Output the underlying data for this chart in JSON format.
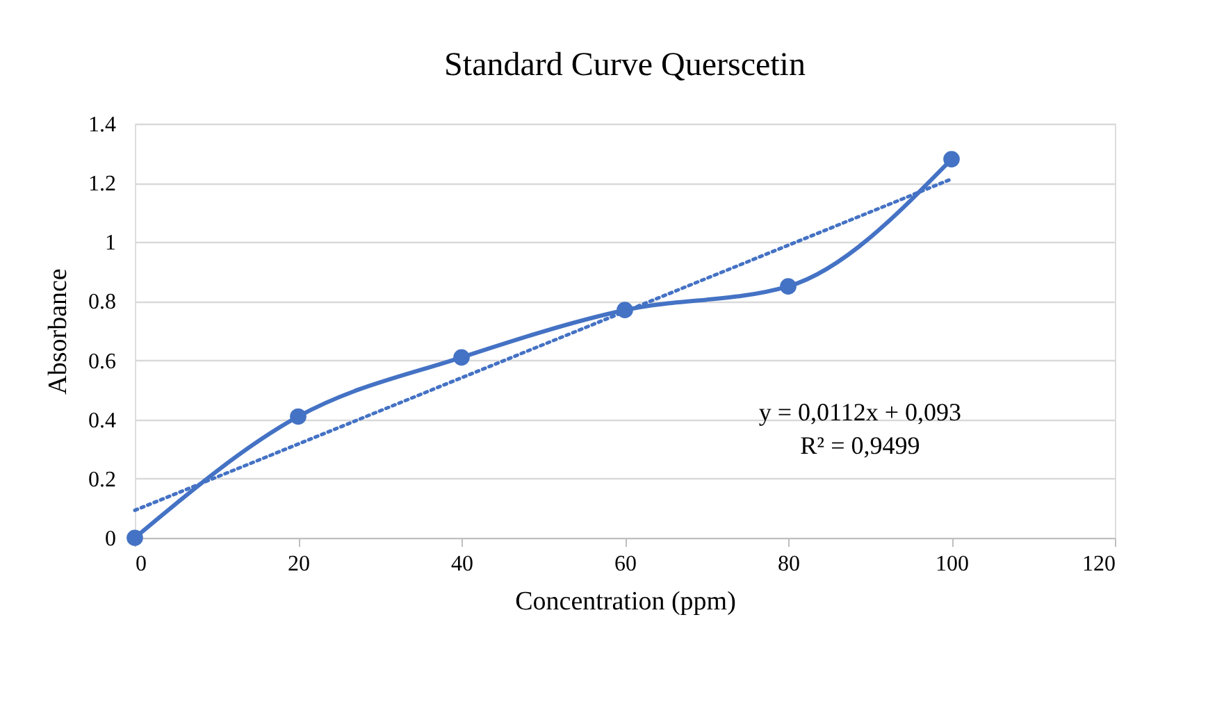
{
  "chart_data": {
    "type": "line",
    "title": "Standard Curve Querscetin",
    "xlabel": "Concentration (ppm)",
    "ylabel": "Absorbance",
    "x": [
      0,
      20,
      40,
      60,
      80,
      100
    ],
    "series": [
      {
        "color": "#4472c4",
        "values": [
          0,
          0.41,
          0.61,
          0.77,
          0.85,
          1.28
        ],
        "marker": "circle",
        "line_style": "solid"
      },
      {
        "type": "line",
        "color": "#4472c4",
        "x": [
          0,
          100
        ],
        "values": [
          0.093,
          1.213
        ],
        "marker": "none",
        "line_style": "dotted"
      }
    ],
    "xlim": [
      0,
      120
    ],
    "xticks": [
      0,
      20,
      40,
      60,
      80,
      100,
      120
    ],
    "ylim": [
      0,
      1.4
    ],
    "yticks": [
      0,
      0.2,
      0.4,
      0.6,
      0.8,
      1,
      1.2,
      1.4
    ],
    "grid": "y",
    "annotations": [
      "y = 0,0112x + 0,093",
      "R² = 0,9499"
    ]
  }
}
